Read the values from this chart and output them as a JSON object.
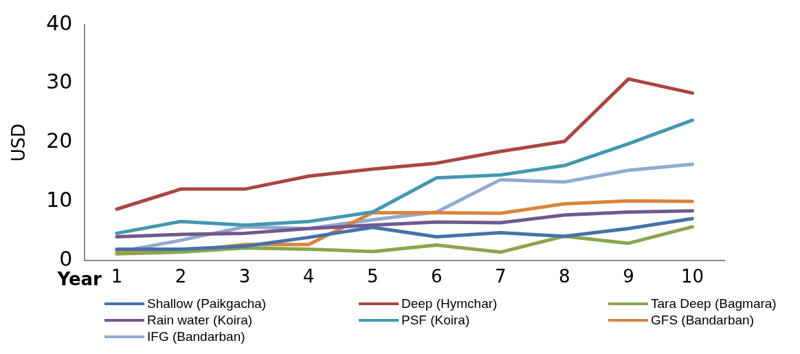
{
  "chart_data": {
    "type": "line",
    "xlabel": "Year",
    "ylabel": "USD",
    "categories": [
      "1",
      "2",
      "3",
      "4",
      "5",
      "6",
      "7",
      "8",
      "9",
      "10"
    ],
    "ylim": [
      0,
      40
    ],
    "yticks": [
      0,
      10,
      20,
      30,
      40
    ],
    "grid": false,
    "legend": "bottom",
    "marker": "none",
    "line_style": "solid",
    "series": [
      {
        "name": "Shallow (Paikgacha)",
        "color": "#4572a7",
        "values": [
          1.9,
          1.9,
          2.4,
          3.9,
          5.6,
          4.0,
          4.7,
          4.1,
          5.4,
          7.1
        ]
      },
      {
        "name": "Deep (Hymchar)",
        "color": "#aa4643",
        "values": [
          8.7,
          12.1,
          12.1,
          14.3,
          15.5,
          16.5,
          18.5,
          20.2,
          30.8,
          28.4
        ]
      },
      {
        "name": "Tara Deep (Bagmara)",
        "color": "#89a54e",
        "values": [
          1.1,
          1.4,
          2.1,
          1.9,
          1.5,
          2.6,
          1.4,
          4.1,
          2.9,
          5.7
        ]
      },
      {
        "name": "Rain water (Koira)",
        "color": "#71588f",
        "values": [
          4.0,
          4.4,
          4.6,
          5.4,
          6.0,
          6.5,
          6.4,
          7.7,
          8.2,
          8.4
        ]
      },
      {
        "name": "PSF (Koira)",
        "color": "#4198af",
        "values": [
          4.6,
          6.6,
          6.0,
          6.6,
          8.2,
          14.0,
          14.5,
          16.1,
          19.8,
          23.8
        ]
      },
      {
        "name": "GFS (Bandarban)",
        "color": "#db843d",
        "values": [
          1.5,
          1.5,
          2.7,
          2.7,
          8.1,
          8.1,
          8.0,
          9.6,
          10.1,
          10.0
        ]
      },
      {
        "name": "IFG (Bandarban)",
        "color": "#93a9cf",
        "values": [
          1.4,
          3.4,
          5.7,
          5.4,
          6.9,
          8.2,
          13.7,
          13.3,
          15.3,
          16.3
        ]
      }
    ]
  }
}
